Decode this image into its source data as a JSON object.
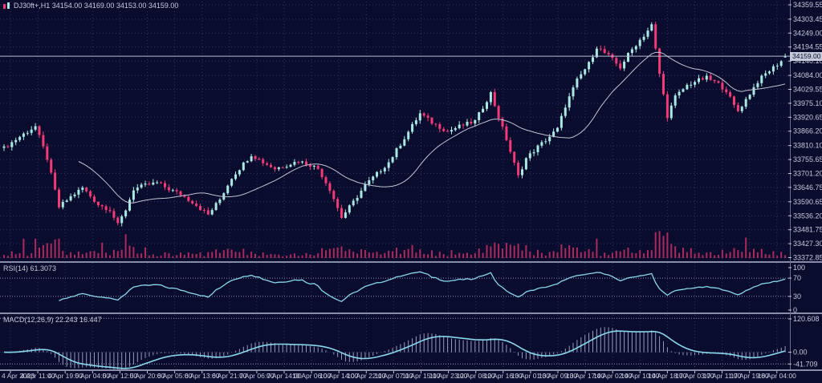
{
  "header": {
    "symbol_line": "DJ30ft+,H1 34154.00 34169.00 34153.00 34159.00"
  },
  "panes": {
    "rsi_label": "RSI(14) 61.3073",
    "macd_label": "MACD(12,26,9) 22.243 16.447"
  },
  "chart_data": {
    "type": "candlestick",
    "symbol": "DJ30ft+",
    "timeframe": "H1",
    "last_candle": {
      "open": "34154.00",
      "high": "34169.00",
      "low": "34153.00",
      "close": "34159.00"
    },
    "price_axis_labels": [
      "34359.55",
      "34303.45",
      "34249.00",
      "34194.55",
      "34140.10",
      "34084.00",
      "34029.55",
      "33975.10",
      "33920.65",
      "33866.20",
      "33810.10",
      "33755.65",
      "33701.20",
      "33646.75",
      "33590.65",
      "33536.20",
      "33481.75",
      "33427.30",
      "33372.85"
    ],
    "price_range": [
      33365,
      34372
    ],
    "time_axis_labels": [
      "4 Apr 2023",
      "4 Apr 11:00",
      "4 Apr 19:00",
      "5 Apr 04:00",
      "5 Apr 12:00",
      "5 Apr 20:00",
      "6 Apr 05:00",
      "6 Apr 13:00",
      "6 Apr 21:00",
      "7 Apr 06:00",
      "7 Apr 14:00",
      "10 Apr 06:00",
      "10 Apr 14:00",
      "10 Apr 22:00",
      "11 Apr 07:00",
      "11 Apr 15:00",
      "11 Apr 23:00",
      "12 Apr 08:00",
      "12 Apr 16:00",
      "13 Apr 01:00",
      "13 Apr 09:00",
      "13 Apr 17:00",
      "14 Apr 02:00",
      "14 Apr 10:00",
      "14 Apr 18:00",
      "17 Apr 03:00",
      "17 Apr 11:00",
      "17 Apr 19:00",
      "18 Apr 04:00"
    ],
    "candle_count": 200,
    "close_waypoints": [
      [
        0,
        33800
      ],
      [
        4,
        33845
      ],
      [
        8,
        33885
      ],
      [
        11,
        33760
      ],
      [
        14,
        33570
      ],
      [
        17,
        33610
      ],
      [
        20,
        33645
      ],
      [
        24,
        33580
      ],
      [
        27,
        33560
      ],
      [
        29,
        33500
      ],
      [
        31,
        33560
      ],
      [
        33,
        33640
      ],
      [
        36,
        33655
      ],
      [
        39,
        33665
      ],
      [
        42,
        33640
      ],
      [
        45,
        33620
      ],
      [
        48,
        33590
      ],
      [
        52,
        33540
      ],
      [
        55,
        33600
      ],
      [
        58,
        33685
      ],
      [
        63,
        33775
      ],
      [
        66,
        33745
      ],
      [
        69,
        33720
      ],
      [
        72,
        33735
      ],
      [
        75,
        33750
      ],
      [
        78,
        33735
      ],
      [
        80,
        33720
      ],
      [
        83,
        33640
      ],
      [
        86,
        33530
      ],
      [
        89,
        33590
      ],
      [
        92,
        33655
      ],
      [
        95,
        33700
      ],
      [
        98,
        33745
      ],
      [
        102,
        33840
      ],
      [
        106,
        33935
      ],
      [
        109,
        33900
      ],
      [
        113,
        33865
      ],
      [
        116,
        33885
      ],
      [
        120,
        33905
      ],
      [
        122,
        33960
      ],
      [
        124,
        34015
      ],
      [
        126,
        33920
      ],
      [
        128,
        33835
      ],
      [
        131,
        33690
      ],
      [
        133,
        33760
      ],
      [
        136,
        33805
      ],
      [
        139,
        33845
      ],
      [
        141,
        33875
      ],
      [
        143,
        33965
      ],
      [
        146,
        34065
      ],
      [
        149,
        34130
      ],
      [
        151,
        34195
      ],
      [
        154,
        34160
      ],
      [
        157,
        34115
      ],
      [
        159,
        34165
      ],
      [
        161,
        34205
      ],
      [
        163,
        34240
      ],
      [
        165,
        34280
      ],
      [
        167,
        34090
      ],
      [
        169,
        33925
      ],
      [
        171,
        34000
      ],
      [
        174,
        34045
      ],
      [
        176,
        34060
      ],
      [
        179,
        34075
      ],
      [
        182,
        34050
      ],
      [
        184,
        34025
      ],
      [
        186,
        33965
      ],
      [
        187,
        33945
      ],
      [
        189,
        33990
      ],
      [
        192,
        34060
      ],
      [
        194,
        34090
      ],
      [
        196,
        34115
      ],
      [
        198,
        34140
      ],
      [
        199,
        34159
      ]
    ],
    "rsi": {
      "period": 14,
      "last": "61.3073",
      "levels": [
        30,
        70
      ],
      "scale_labels": [
        "100",
        "70",
        "30",
        "0"
      ]
    },
    "macd": {
      "params": "12,26,9",
      "last_main": "22.243",
      "last_signal": "16.447",
      "scale_labels": [
        "120.608",
        "0.00",
        "-41.709"
      ],
      "value_range": [
        -58,
        130
      ]
    },
    "colors": {
      "background": "#0a0c2e",
      "grid": "#2f3565",
      "bull": "#aae9e2",
      "bear": "#f23a76",
      "volume": "#aa2a5c",
      "ma_line": "#bfc2d2",
      "bid_line": "#b9bdcf",
      "indicator_line": "#8ad6ea",
      "macd_histogram": "#959cba",
      "axis_text": "#c6c9da",
      "separator": "#888daa",
      "level_line": "#8b93b8",
      "tag_bg": "#c6c9da",
      "tag_text": "#0a0c2e"
    }
  }
}
